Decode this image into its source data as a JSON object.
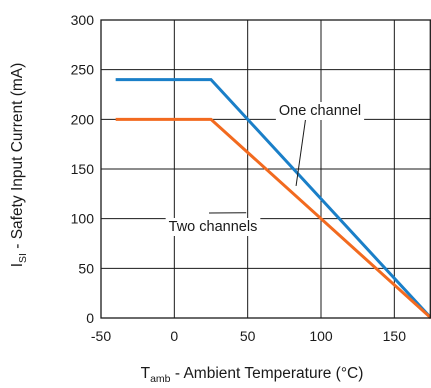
{
  "chart_data": {
    "type": "line",
    "xlabel": {
      "main": "T",
      "sub": "amb",
      "rest": " - Ambient Temperature (°C)"
    },
    "ylabel": {
      "main": "I",
      "sub": "SI",
      "rest": " - Safety Input Current (mA)"
    },
    "xlim": [
      -50,
      175
    ],
    "ylim": [
      0,
      300
    ],
    "x_ticks": [
      -50,
      0,
      50,
      100,
      150
    ],
    "y_ticks": [
      0,
      50,
      100,
      150,
      200,
      250,
      300
    ],
    "grid": true,
    "series": [
      {
        "name": "One channel",
        "color": "#1a7fc8",
        "x": [
          -40,
          25,
          175
        ],
        "y": [
          240,
          240,
          0
        ]
      },
      {
        "name": "Two channels",
        "color": "#f26a1f",
        "x": [
          -40,
          25,
          175
        ],
        "y": [
          200,
          200,
          0
        ]
      }
    ],
    "annotations": [
      {
        "text": "One channel",
        "series": 0
      },
      {
        "text": "Two channels",
        "series": 1
      }
    ]
  }
}
